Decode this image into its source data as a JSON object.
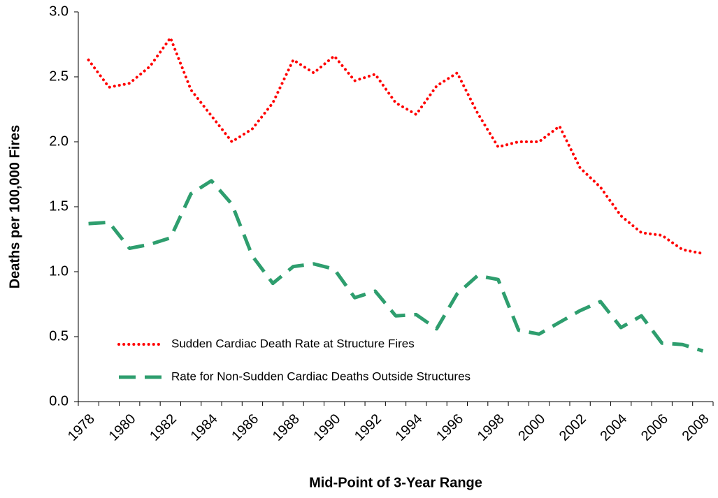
{
  "chart_data": {
    "type": "line",
    "x_label": "Mid-Point of 3-Year Range",
    "y_label": "Deaths per 100,000 Fires",
    "categories": [
      "1978",
      null,
      "1980",
      null,
      "1982",
      null,
      "1984",
      null,
      "1986",
      null,
      "1988",
      null,
      "1990",
      null,
      "1992",
      null,
      "1994",
      null,
      "1996",
      null,
      "1998",
      null,
      "2000",
      null,
      "2002",
      null,
      "2004",
      null,
      "2006",
      null,
      "2008"
    ],
    "series": [
      {
        "name": "Sudden Cardiac Death Rate at Structure Fires",
        "color": "#ff0000",
        "style": "dotted",
        "values": [
          2.63,
          2.42,
          2.45,
          2.58,
          2.8,
          2.4,
          2.2,
          2.0,
          2.1,
          2.3,
          2.63,
          2.53,
          2.66,
          2.47,
          2.52,
          2.3,
          2.21,
          2.43,
          2.53,
          2.22,
          1.96,
          2.0,
          2.0,
          2.12,
          1.8,
          1.65,
          1.43,
          1.3,
          1.28,
          1.17,
          1.14
        ]
      },
      {
        "name": "Rate for Non-Sudden Cardiac Deaths Outside Structures",
        "color": "#2e9e6e",
        "style": "dashed",
        "values": [
          1.37,
          1.38,
          1.18,
          1.21,
          1.26,
          1.6,
          1.7,
          1.52,
          1.12,
          0.91,
          1.04,
          1.06,
          1.02,
          0.8,
          0.85,
          0.66,
          0.67,
          0.56,
          0.83,
          0.97,
          0.94,
          0.55,
          0.52,
          0.61,
          0.7,
          0.77,
          0.57,
          0.66,
          0.45,
          0.44,
          0.39
        ]
      }
    ],
    "ylim": [
      0,
      3
    ],
    "yticks": [
      {
        "value": 0,
        "label": "0.0"
      },
      0.5,
      {
        "value": 1,
        "label": "1.0"
      },
      1.5,
      {
        "value": 2,
        "label": "2.0"
      },
      2.5,
      {
        "value": 3,
        "label": "3.0"
      }
    ],
    "grid": false,
    "legend": "bottom-left"
  }
}
